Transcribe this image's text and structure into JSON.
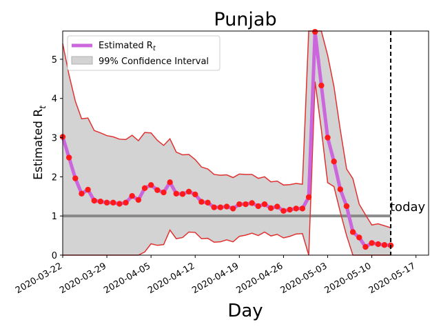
{
  "chart_data": {
    "type": "line",
    "title": "Punjab",
    "xlabel": "Day",
    "ylabel": "Estimated R",
    "ylabel_subscript": "t",
    "x_tick_labels": [
      "2020-03-22",
      "2020-03-29",
      "2020-04-05",
      "2020-04-12",
      "2020-04-19",
      "2020-04-26",
      "2020-05-03",
      "2020-05-10",
      "2020-05-17"
    ],
    "y_ticks": [
      0,
      1,
      2,
      3,
      4,
      5
    ],
    "ylim": [
      0,
      5.72
    ],
    "xlim": [
      "2020-03-22",
      "2020-05-19"
    ],
    "legend": {
      "placement": "upper-left",
      "entries": [
        {
          "label": "Estimated R",
          "subscript": "t",
          "color": "#cc66dd"
        },
        {
          "label": "99% Confidence Interval",
          "color": "#d3d3d3"
        }
      ]
    },
    "reference_line": {
      "y": 1,
      "color": "#808080"
    },
    "today": {
      "date": "2020-05-13",
      "label": "today"
    },
    "x": [
      "2020-03-22",
      "2020-03-23",
      "2020-03-24",
      "2020-03-25",
      "2020-03-26",
      "2020-03-27",
      "2020-03-28",
      "2020-03-29",
      "2020-03-30",
      "2020-03-31",
      "2020-04-01",
      "2020-04-02",
      "2020-04-03",
      "2020-04-04",
      "2020-04-05",
      "2020-04-06",
      "2020-04-07",
      "2020-04-08",
      "2020-04-09",
      "2020-04-10",
      "2020-04-11",
      "2020-04-12",
      "2020-04-13",
      "2020-04-14",
      "2020-04-15",
      "2020-04-16",
      "2020-04-17",
      "2020-04-18",
      "2020-04-19",
      "2020-04-20",
      "2020-04-21",
      "2020-04-22",
      "2020-04-23",
      "2020-04-24",
      "2020-04-25",
      "2020-04-26",
      "2020-04-27",
      "2020-04-28",
      "2020-04-29",
      "2020-04-30",
      "2020-05-01",
      "2020-05-02",
      "2020-05-03",
      "2020-05-04",
      "2020-05-05",
      "2020-05-06",
      "2020-05-07",
      "2020-05-08",
      "2020-05-09",
      "2020-05-10",
      "2020-05-11",
      "2020-05-12",
      "2020-05-13"
    ],
    "series": [
      {
        "name": "Estimated R",
        "color": "#cc66dd",
        "marker_color": "#ff1a1a",
        "values": [
          3.02,
          2.49,
          1.96,
          1.57,
          1.67,
          1.39,
          1.37,
          1.34,
          1.34,
          1.31,
          1.34,
          1.51,
          1.41,
          1.71,
          1.79,
          1.66,
          1.6,
          1.86,
          1.57,
          1.56,
          1.62,
          1.55,
          1.36,
          1.34,
          1.22,
          1.22,
          1.24,
          1.19,
          1.3,
          1.3,
          1.33,
          1.25,
          1.3,
          1.2,
          1.24,
          1.13,
          1.16,
          1.19,
          1.19,
          1.48,
          5.7,
          4.33,
          3.0,
          2.39,
          1.68,
          1.25,
          0.59,
          0.45,
          0.21,
          0.31,
          0.28,
          0.26,
          0.25
        ]
      },
      {
        "name": "upper",
        "color": "#e03030",
        "values": [
          5.4,
          4.6,
          3.93,
          3.48,
          3.5,
          3.18,
          3.12,
          3.05,
          3.02,
          2.96,
          2.95,
          3.06,
          2.92,
          3.13,
          3.12,
          2.93,
          2.8,
          2.97,
          2.63,
          2.56,
          2.57,
          2.44,
          2.25,
          2.2,
          2.06,
          2.04,
          2.05,
          1.98,
          2.07,
          2.06,
          2.06,
          1.96,
          2.0,
          1.87,
          1.89,
          1.79,
          1.8,
          1.83,
          1.81,
          5.72,
          5.72,
          5.72,
          5.1,
          4.3,
          3.2,
          2.2,
          1.95,
          1.3,
          1.03,
          0.77,
          0.8,
          0.75,
          0.7
        ]
      },
      {
        "name": "lower",
        "color": "#e03030",
        "values": [
          0,
          0,
          0,
          0,
          0,
          0,
          0,
          0,
          0,
          0,
          0,
          0,
          0,
          0.08,
          0.29,
          0.25,
          0.27,
          0.64,
          0.42,
          0.45,
          0.59,
          0.58,
          0.42,
          0.43,
          0.33,
          0.34,
          0.39,
          0.34,
          0.48,
          0.51,
          0.56,
          0.5,
          0.59,
          0.49,
          0.53,
          0.44,
          0.48,
          0.54,
          0.55,
          0,
          4.43,
          3.2,
          1.85,
          1.75,
          1.1,
          0.5,
          0,
          0,
          0,
          0,
          0,
          0,
          0
        ]
      }
    ]
  }
}
